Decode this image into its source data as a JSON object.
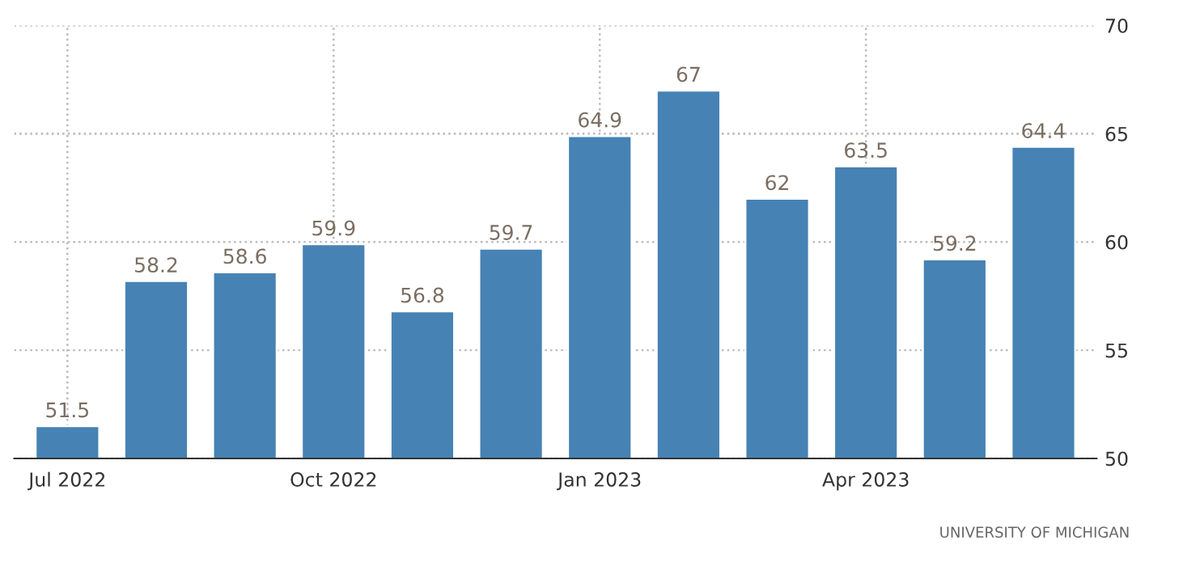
{
  "chart_data": {
    "type": "bar",
    "categories": [
      "Jul 2022",
      null,
      null,
      "Oct 2022",
      null,
      null,
      "Jan 2023",
      null,
      null,
      "Apr 2023",
      null,
      null
    ],
    "values": [
      51.5,
      58.2,
      58.6,
      59.9,
      56.8,
      59.7,
      64.9,
      67,
      62,
      63.5,
      59.2,
      64.4
    ],
    "color": "#4682b4",
    "ylim": [
      50,
      70
    ],
    "yticks": [
      50,
      55,
      60,
      65,
      70
    ],
    "grid": true,
    "data_labels": true,
    "annotations": [
      "UNIVERSITY OF MICHIGAN"
    ]
  }
}
